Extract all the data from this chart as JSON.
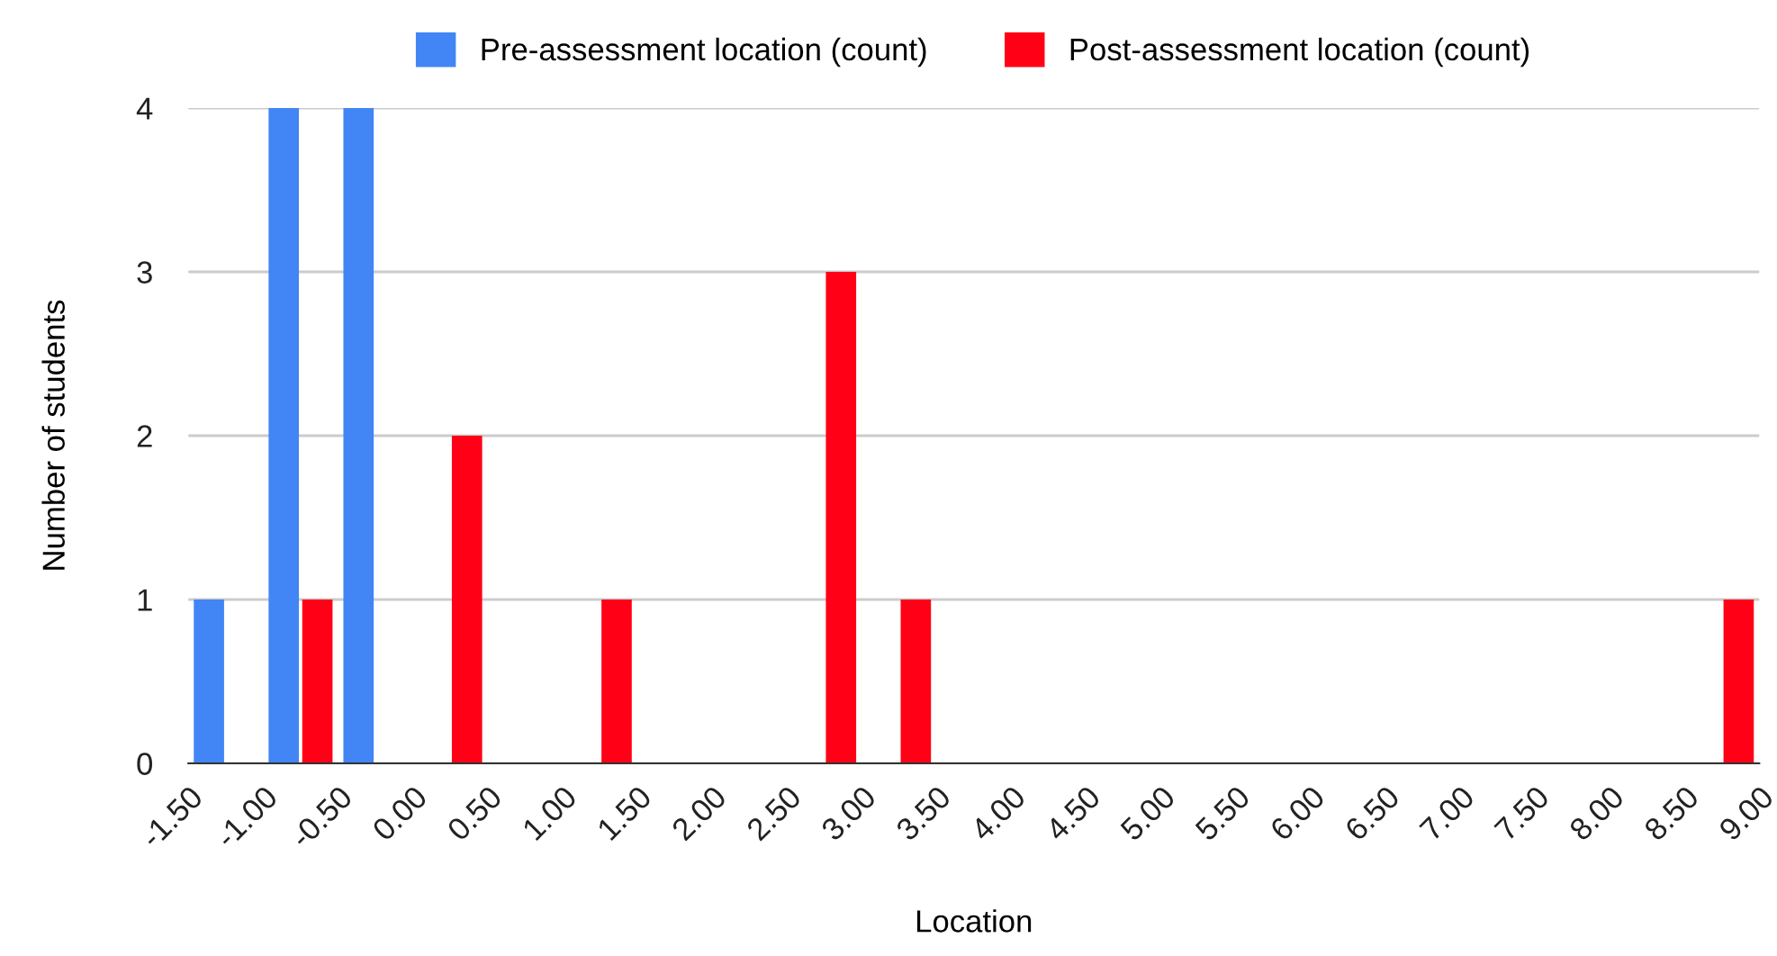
{
  "chart_data": {
    "type": "histogram",
    "xlabel": "Location",
    "ylabel": "Number of students",
    "bins": [
      -1.5,
      -1.0,
      -0.5,
      0.0,
      0.5,
      1.0,
      1.5,
      2.0,
      2.5,
      3.0,
      3.5,
      4.0,
      4.5,
      5.0,
      5.5,
      6.0,
      6.5,
      7.0,
      7.5,
      8.0,
      8.5,
      9.0
    ],
    "series": [
      {
        "name": "Pre-assessment location (count)",
        "color": "#4285f4",
        "values": [
          1,
          4,
          4,
          0,
          0,
          0,
          0,
          0,
          0,
          0,
          0,
          0,
          0,
          0,
          0,
          0,
          0,
          0,
          0,
          0,
          0
        ]
      },
      {
        "name": "Post-assessment location (count)",
        "color": "#ff0016",
        "values": [
          0,
          1,
          0,
          2,
          0,
          1,
          0,
          0,
          3,
          1,
          0,
          0,
          0,
          0,
          0,
          0,
          0,
          0,
          0,
          0,
          1
        ]
      }
    ],
    "xlim": [
      -1.5,
      9.0
    ],
    "xticks": [
      {
        "value": -1.5,
        "label": "-1.50"
      },
      {
        "value": -1.0,
        "label": "-1.00"
      },
      {
        "value": -0.5,
        "label": "-0.50"
      },
      {
        "value": 0.0,
        "label": "0.00"
      },
      {
        "value": 0.5,
        "label": "0.50"
      },
      {
        "value": 1.0,
        "label": "1.00"
      },
      {
        "value": 1.5,
        "label": "1.50"
      },
      {
        "value": 2.0,
        "label": "2.00"
      },
      {
        "value": 2.5,
        "label": "2.50"
      },
      {
        "value": 3.0,
        "label": "3.00"
      },
      {
        "value": 3.5,
        "label": "3.50"
      },
      {
        "value": 4.0,
        "label": "4.00"
      },
      {
        "value": 4.5,
        "label": "4.50"
      },
      {
        "value": 5.0,
        "label": "5.00"
      },
      {
        "value": 5.5,
        "label": "5.50"
      },
      {
        "value": 6.0,
        "label": "6.00"
      },
      {
        "value": 6.5,
        "label": "6.50"
      },
      {
        "value": 7.0,
        "label": "7.00"
      },
      {
        "value": 7.5,
        "label": "7.50"
      },
      {
        "value": 8.0,
        "label": "8.00"
      },
      {
        "value": 8.5,
        "label": "8.50"
      },
      {
        "value": 9.0,
        "label": "9.00"
      }
    ],
    "ylim": [
      0,
      4
    ],
    "yticks": [
      0,
      1,
      2,
      3,
      4
    ],
    "grid": "y",
    "legend": "top"
  }
}
